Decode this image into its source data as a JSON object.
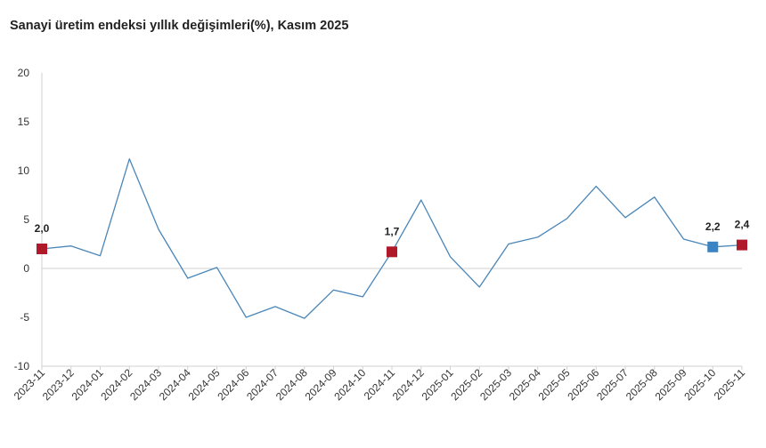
{
  "chart_data": {
    "type": "line",
    "title": "Sanayi üretim endeksi yıllık değişimleri(%), Kasım 2025",
    "xlabel": "",
    "ylabel": "",
    "ylim": [
      -10,
      20
    ],
    "yticks": [
      "20",
      "15",
      "10",
      "5",
      "0",
      "-5",
      "-10"
    ],
    "categories": [
      "2023-11",
      "2023-12",
      "2024-01",
      "2024-02",
      "2024-03",
      "2024-04",
      "2024-05",
      "2024-06",
      "2024-07",
      "2024-08",
      "2024-09",
      "2024-10",
      "2024-11",
      "2024-12",
      "2025-01",
      "2025-02",
      "2025-03",
      "2025-04",
      "2025-05",
      "2025-06",
      "2025-07",
      "2025-08",
      "2025-09",
      "2025-10",
      "2025-11"
    ],
    "series": [
      {
        "values": [
          2.0,
          2.3,
          1.3,
          11.2,
          4.0,
          -1.0,
          0.1,
          -5.0,
          -3.9,
          -5.1,
          -2.2,
          -2.9,
          1.7,
          7.0,
          1.2,
          -1.9,
          2.5,
          3.2,
          5.1,
          8.4,
          5.2,
          7.3,
          3.0,
          2.2,
          2.4
        ],
        "color": "#4a86b8"
      }
    ],
    "markers": [
      {
        "index": 0,
        "label": "2,0",
        "color": "#b0192a"
      },
      {
        "index": 12,
        "label": "1,7",
        "color": "#b0192a"
      },
      {
        "index": 23,
        "label": "2,2",
        "color": "#3a84c4"
      },
      {
        "index": 24,
        "label": "2,4",
        "color": "#b0192a"
      }
    ],
    "grid": false,
    "zero_line": true,
    "legend": "none"
  }
}
